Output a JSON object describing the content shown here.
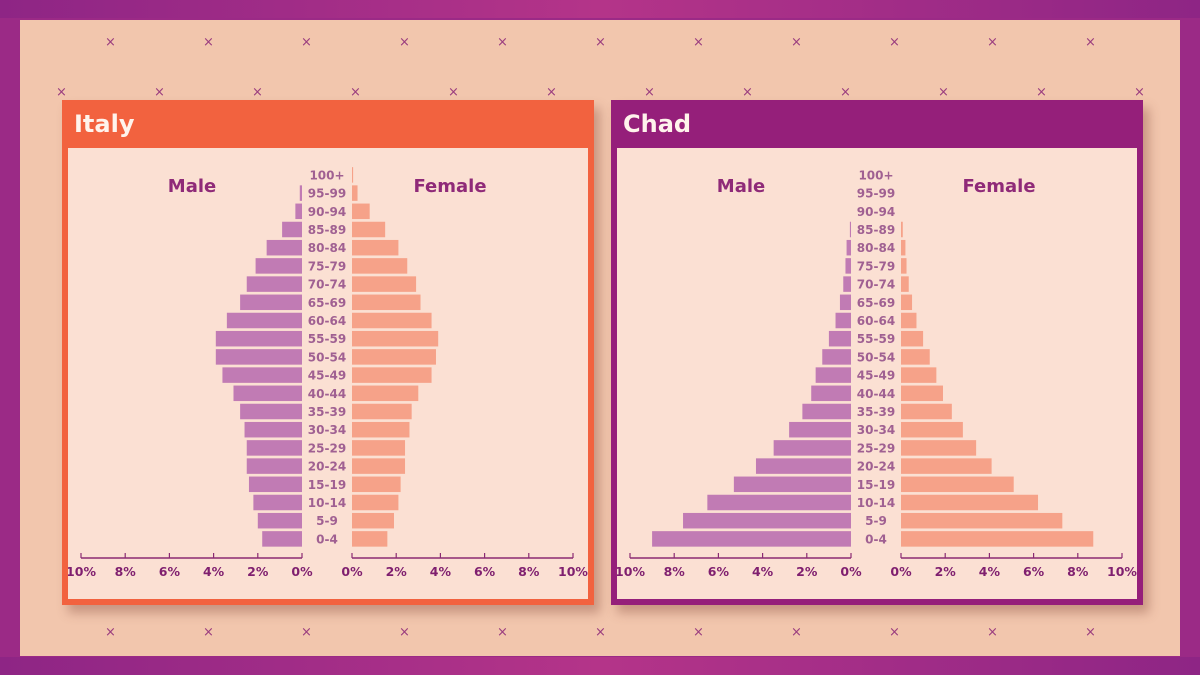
{
  "colors": {
    "frame": "#9b2a86",
    "background": "#f2c6ad",
    "panel_bg": "#fbe0d3",
    "male_bar": "#c17bb4",
    "female_bar": "#f6a289",
    "italy_header": "#f2623f",
    "chad_header": "#951f7a",
    "axis": "#8b2b73"
  },
  "decoration": {
    "mark_icon": "×"
  },
  "chart_data": [
    {
      "type": "bar",
      "orientation": "population-pyramid",
      "title": "Italy",
      "left_label": "Male",
      "right_label": "Female",
      "categories": [
        "0-4",
        "5-9",
        "10-14",
        "15-19",
        "20-24",
        "25-29",
        "30-34",
        "35-39",
        "40-44",
        "45-49",
        "50-54",
        "55-59",
        "60-64",
        "65-69",
        "70-74",
        "75-79",
        "80-84",
        "85-89",
        "90-94",
        "95-99",
        "100+"
      ],
      "series": [
        {
          "name": "Male",
          "values": [
            1.8,
            2.0,
            2.2,
            2.4,
            2.5,
            2.5,
            2.6,
            2.8,
            3.1,
            3.6,
            3.9,
            3.9,
            3.4,
            2.8,
            2.5,
            2.1,
            1.6,
            0.9,
            0.3,
            0.1,
            0.0
          ]
        },
        {
          "name": "Female",
          "values": [
            1.6,
            1.9,
            2.1,
            2.2,
            2.4,
            2.4,
            2.6,
            2.7,
            3.0,
            3.6,
            3.8,
            3.9,
            3.6,
            3.1,
            2.9,
            2.5,
            2.1,
            1.5,
            0.8,
            0.25,
            0.05
          ]
        }
      ],
      "xlim": [
        0,
        10
      ],
      "tick_labels_left": [
        "10%",
        "8%",
        "6%",
        "4%",
        "2%",
        "0%"
      ],
      "tick_labels_right": [
        "0%",
        "2%",
        "4%",
        "6%",
        "8%",
        "10%"
      ]
    },
    {
      "type": "bar",
      "orientation": "population-pyramid",
      "title": "Chad",
      "left_label": "Male",
      "right_label": "Female",
      "categories": [
        "0-4",
        "5-9",
        "10-14",
        "15-19",
        "20-24",
        "25-29",
        "30-34",
        "35-39",
        "40-44",
        "45-49",
        "50-54",
        "55-59",
        "60-64",
        "65-69",
        "70-74",
        "75-79",
        "80-84",
        "85-89",
        "90-94",
        "95-99",
        "100+"
      ],
      "series": [
        {
          "name": "Male",
          "values": [
            9.0,
            7.6,
            6.5,
            5.3,
            4.3,
            3.5,
            2.8,
            2.2,
            1.8,
            1.6,
            1.3,
            1.0,
            0.7,
            0.5,
            0.35,
            0.25,
            0.2,
            0.05,
            0.0,
            0.0,
            0.0
          ]
        },
        {
          "name": "Female",
          "values": [
            8.7,
            7.3,
            6.2,
            5.1,
            4.1,
            3.4,
            2.8,
            2.3,
            1.9,
            1.6,
            1.3,
            1.0,
            0.7,
            0.5,
            0.35,
            0.25,
            0.2,
            0.08,
            0.0,
            0.0,
            0.0
          ]
        }
      ],
      "xlim": [
        0,
        10
      ],
      "tick_labels_left": [
        "10%",
        "8%",
        "6%",
        "4%",
        "2%",
        "0%"
      ],
      "tick_labels_right": [
        "0%",
        "2%",
        "4%",
        "6%",
        "8%",
        "10%"
      ]
    }
  ]
}
